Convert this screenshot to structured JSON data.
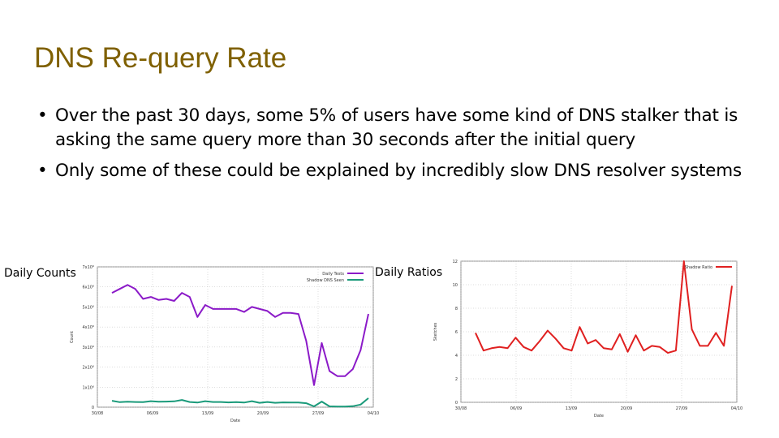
{
  "slide": {
    "title": "DNS Re-query Rate",
    "bullets": [
      "Over the past 30 days, some 5% of users have some kind of DNS stalker that is asking the same query more than 30 seconds after the initial query",
      "Only some of these could be explained by incredibly slow DNS resolver systems"
    ],
    "bullet_glyph": "•",
    "left_label": "Daily Counts",
    "right_label": "Daily Ratios"
  },
  "chart_data": [
    {
      "type": "line",
      "xlabel": "Date",
      "ylabel": "Count",
      "x_ticks": [
        "30/08",
        "06/09",
        "13/09",
        "20/09",
        "27/09",
        "04/10"
      ],
      "y_ticks": [
        "0",
        "1x10⁶",
        "2x10⁶",
        "3x10⁶",
        "4x10⁶",
        "5x10⁶",
        "6x10⁶",
        "7x10⁶"
      ],
      "ylim": [
        0,
        7000000
      ],
      "series": [
        {
          "name": "Daily Tests",
          "color": "#8b1ac8",
          "values": [
            5700000,
            5900000,
            6100000,
            5900000,
            5400000,
            5500000,
            5350000,
            5400000,
            5300000,
            5700000,
            5500000,
            4500000,
            5100000,
            4900000,
            4900000,
            4900000,
            4900000,
            4750000,
            5000000,
            4900000,
            4800000,
            4500000,
            4700000,
            4700000,
            4650000,
            3300000,
            1100000,
            3200000,
            1800000,
            1550000,
            1550000,
            1900000,
            2850000,
            4650000
          ]
        },
        {
          "name": "Shadow DNS Seen",
          "color": "#1a9a7a",
          "values": [
            320000,
            250000,
            270000,
            260000,
            250000,
            300000,
            270000,
            280000,
            290000,
            360000,
            260000,
            230000,
            300000,
            260000,
            260000,
            240000,
            250000,
            230000,
            300000,
            220000,
            260000,
            220000,
            240000,
            230000,
            230000,
            200000,
            40000,
            280000,
            40000,
            30000,
            30000,
            50000,
            130000,
            450000
          ]
        }
      ]
    },
    {
      "type": "line",
      "xlabel": "Date",
      "ylabel": "Sketches",
      "x_ticks": [
        "30/08",
        "06/09",
        "13/09",
        "20/09",
        "27/09",
        "04/10"
      ],
      "y_ticks": [
        "0",
        "2",
        "4",
        "6",
        "8",
        "10",
        "12"
      ],
      "ylim": [
        0,
        12
      ],
      "series": [
        {
          "name": "Shadow Ratio",
          "color": "#e02020",
          "values": [
            5.9,
            4.4,
            4.6,
            4.7,
            4.6,
            5.5,
            4.7,
            4.4,
            5.2,
            6.1,
            5.4,
            4.6,
            4.4,
            6.4,
            5.0,
            5.3,
            4.6,
            4.5,
            5.8,
            4.3,
            5.7,
            4.4,
            4.8,
            4.7,
            4.2,
            4.4,
            12.0,
            6.2,
            4.8,
            4.8,
            5.9,
            4.8,
            9.9
          ]
        }
      ]
    }
  ]
}
